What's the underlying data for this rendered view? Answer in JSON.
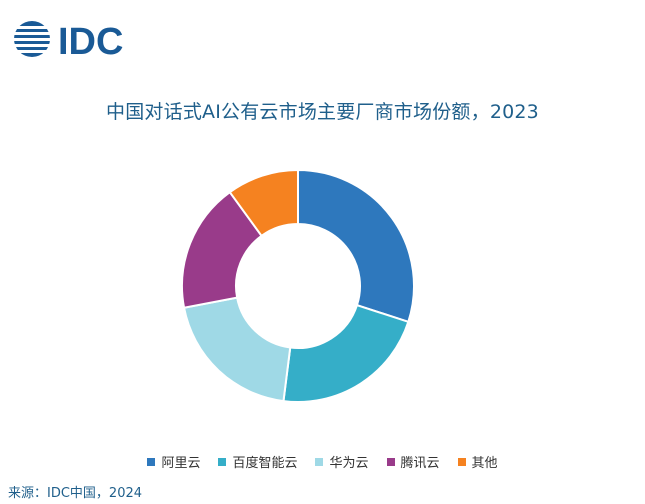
{
  "brand": {
    "logo_text": "IDC",
    "logo_color": "#1a5a96"
  },
  "title": "中国对话式AI公有云市场主要厂商市场份额，2023",
  "source": "来源：IDC中国，2024",
  "chart_data": {
    "type": "pie",
    "donut": true,
    "title": "中国对话式AI公有云市场主要厂商市场份额，2023",
    "categories": [
      "阿里云",
      "百度智能云",
      "华为云",
      "腾讯云",
      "其他"
    ],
    "values": [
      30,
      22,
      20,
      18,
      10
    ],
    "colors": [
      "#2e78bd",
      "#35aec8",
      "#9fd9e6",
      "#993b8a",
      "#f58220"
    ],
    "start_angle_deg": 0,
    "legend": "bottom"
  }
}
